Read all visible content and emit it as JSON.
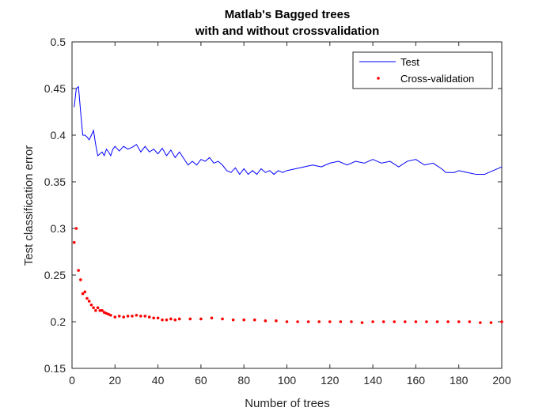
{
  "chart_data": {
    "type": "line",
    "title": [
      "Matlab's Bagged trees",
      "with and without crossvalidation"
    ],
    "xlabel": "Number of trees",
    "ylabel": "Test classification error",
    "xlim": [
      0,
      200
    ],
    "ylim": [
      0.15,
      0.5
    ],
    "xticks": [
      0,
      20,
      40,
      60,
      80,
      100,
      120,
      140,
      160,
      180,
      200
    ],
    "yticks": [
      0.15,
      0.2,
      0.25,
      0.3,
      0.35,
      0.4,
      0.45,
      0.5
    ],
    "xtick_labels": [
      "0",
      "20",
      "40",
      "60",
      "80",
      "100",
      "120",
      "140",
      "160",
      "180",
      "200"
    ],
    "ytick_labels": [
      "0.15",
      "0.2",
      "0.25",
      "0.3",
      "0.35",
      "0.4",
      "0.45",
      "0.5"
    ],
    "legend_position": "top-right",
    "grid": false,
    "series": [
      {
        "name": "Test",
        "style": "line",
        "color": "#0000ff",
        "points": [
          [
            1,
            0.43
          ],
          [
            2,
            0.45
          ],
          [
            3,
            0.452
          ],
          [
            4,
            0.425
          ],
          [
            5,
            0.4
          ],
          [
            6,
            0.4
          ],
          [
            7,
            0.398
          ],
          [
            8,
            0.395
          ],
          [
            9,
            0.4
          ],
          [
            10,
            0.405
          ],
          [
            11,
            0.39
          ],
          [
            12,
            0.378
          ],
          [
            13,
            0.38
          ],
          [
            14,
            0.382
          ],
          [
            15,
            0.378
          ],
          [
            16,
            0.385
          ],
          [
            17,
            0.382
          ],
          [
            18,
            0.378
          ],
          [
            19,
            0.385
          ],
          [
            20,
            0.388
          ],
          [
            22,
            0.383
          ],
          [
            24,
            0.388
          ],
          [
            26,
            0.385
          ],
          [
            28,
            0.387
          ],
          [
            30,
            0.39
          ],
          [
            32,
            0.382
          ],
          [
            34,
            0.388
          ],
          [
            36,
            0.382
          ],
          [
            38,
            0.385
          ],
          [
            40,
            0.38
          ],
          [
            42,
            0.386
          ],
          [
            44,
            0.378
          ],
          [
            46,
            0.384
          ],
          [
            48,
            0.376
          ],
          [
            50,
            0.382
          ],
          [
            52,
            0.375
          ],
          [
            54,
            0.368
          ],
          [
            56,
            0.372
          ],
          [
            58,
            0.368
          ],
          [
            60,
            0.374
          ],
          [
            62,
            0.372
          ],
          [
            64,
            0.376
          ],
          [
            66,
            0.37
          ],
          [
            68,
            0.372
          ],
          [
            70,
            0.368
          ],
          [
            72,
            0.362
          ],
          [
            74,
            0.36
          ],
          [
            76,
            0.365
          ],
          [
            78,
            0.358
          ],
          [
            80,
            0.364
          ],
          [
            82,
            0.358
          ],
          [
            84,
            0.362
          ],
          [
            86,
            0.358
          ],
          [
            88,
            0.364
          ],
          [
            90,
            0.36
          ],
          [
            92,
            0.362
          ],
          [
            94,
            0.358
          ],
          [
            96,
            0.362
          ],
          [
            98,
            0.36
          ],
          [
            100,
            0.362
          ],
          [
            104,
            0.364
          ],
          [
            108,
            0.366
          ],
          [
            112,
            0.368
          ],
          [
            116,
            0.366
          ],
          [
            120,
            0.37
          ],
          [
            124,
            0.372
          ],
          [
            128,
            0.368
          ],
          [
            132,
            0.372
          ],
          [
            136,
            0.37
          ],
          [
            140,
            0.374
          ],
          [
            144,
            0.37
          ],
          [
            148,
            0.372
          ],
          [
            152,
            0.366
          ],
          [
            156,
            0.372
          ],
          [
            160,
            0.374
          ],
          [
            164,
            0.368
          ],
          [
            168,
            0.37
          ],
          [
            172,
            0.364
          ],
          [
            174,
            0.36
          ],
          [
            178,
            0.36
          ],
          [
            180,
            0.362
          ],
          [
            184,
            0.36
          ],
          [
            188,
            0.358
          ],
          [
            192,
            0.358
          ],
          [
            196,
            0.362
          ],
          [
            199,
            0.365
          ],
          [
            200,
            0.366
          ]
        ]
      },
      {
        "name": "Cross-validation",
        "style": "points",
        "color": "#ff0000",
        "points": [
          [
            1,
            0.285
          ],
          [
            2,
            0.3
          ],
          [
            3,
            0.255
          ],
          [
            4,
            0.245
          ],
          [
            5,
            0.23
          ],
          [
            6,
            0.232
          ],
          [
            7,
            0.225
          ],
          [
            8,
            0.222
          ],
          [
            9,
            0.218
          ],
          [
            10,
            0.215
          ],
          [
            11,
            0.212
          ],
          [
            12,
            0.215
          ],
          [
            13,
            0.212
          ],
          [
            14,
            0.212
          ],
          [
            15,
            0.21
          ],
          [
            16,
            0.209
          ],
          [
            17,
            0.208
          ],
          [
            18,
            0.207
          ],
          [
            20,
            0.205
          ],
          [
            22,
            0.206
          ],
          [
            24,
            0.205
          ],
          [
            26,
            0.206
          ],
          [
            28,
            0.206
          ],
          [
            30,
            0.207
          ],
          [
            32,
            0.206
          ],
          [
            34,
            0.206
          ],
          [
            36,
            0.205
          ],
          [
            38,
            0.204
          ],
          [
            40,
            0.204
          ],
          [
            42,
            0.202
          ],
          [
            44,
            0.202
          ],
          [
            46,
            0.203
          ],
          [
            48,
            0.202
          ],
          [
            50,
            0.203
          ],
          [
            55,
            0.203
          ],
          [
            60,
            0.203
          ],
          [
            65,
            0.204
          ],
          [
            70,
            0.203
          ],
          [
            75,
            0.202
          ],
          [
            80,
            0.202
          ],
          [
            85,
            0.202
          ],
          [
            90,
            0.201
          ],
          [
            95,
            0.201
          ],
          [
            100,
            0.2
          ],
          [
            105,
            0.2
          ],
          [
            110,
            0.2
          ],
          [
            115,
            0.2
          ],
          [
            120,
            0.2
          ],
          [
            125,
            0.2
          ],
          [
            130,
            0.2
          ],
          [
            135,
            0.199
          ],
          [
            140,
            0.2
          ],
          [
            145,
            0.2
          ],
          [
            150,
            0.2
          ],
          [
            155,
            0.2
          ],
          [
            160,
            0.2
          ],
          [
            165,
            0.2
          ],
          [
            170,
            0.2
          ],
          [
            175,
            0.2
          ],
          [
            180,
            0.2
          ],
          [
            185,
            0.2
          ],
          [
            190,
            0.199
          ],
          [
            195,
            0.199
          ],
          [
            200,
            0.2
          ]
        ]
      }
    ]
  }
}
